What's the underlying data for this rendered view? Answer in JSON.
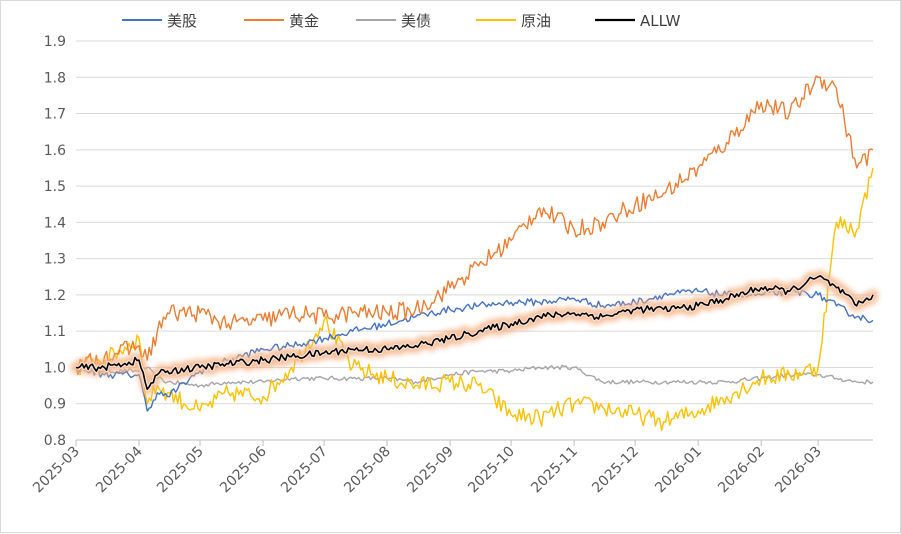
{
  "chart_data": {
    "type": "line",
    "title": "",
    "xlabel": "",
    "ylabel": "",
    "ylim": [
      0.8,
      1.9
    ],
    "yticks": [
      "0.8",
      "0.9",
      "1.0",
      "1.1",
      "1.2",
      "1.3",
      "1.4",
      "1.5",
      "1.6",
      "1.7",
      "1.8",
      "1.9"
    ],
    "x_tick_labels": [
      "2025-03",
      "2025-04",
      "2025-05",
      "2025-06",
      "2025-07",
      "2025-08",
      "2025-09",
      "2025-10",
      "2025-11",
      "2025-12",
      "2026-01",
      "2026-02",
      "2026-03"
    ],
    "grid": "horizontal",
    "legend_position": "top",
    "x": [
      "2025-03-01",
      "2025-03-15",
      "2025-04-01",
      "2025-04-05",
      "2025-04-10",
      "2025-04-15",
      "2025-05-01",
      "2025-05-15",
      "2025-06-01",
      "2025-06-15",
      "2025-07-01",
      "2025-07-15",
      "2025-08-01",
      "2025-08-15",
      "2025-09-01",
      "2025-09-15",
      "2025-10-01",
      "2025-10-15",
      "2025-11-01",
      "2025-11-15",
      "2025-12-01",
      "2025-12-15",
      "2026-01-01",
      "2026-01-15",
      "2026-02-01",
      "2026-02-15",
      "2026-03-01",
      "2026-03-10",
      "2026-03-20",
      "2026-03-28"
    ],
    "series": [
      {
        "name": "美股",
        "color": "#4472C4",
        "values": [
          1.0,
          0.98,
          0.98,
          0.88,
          0.93,
          0.92,
          0.99,
          1.02,
          1.05,
          1.06,
          1.08,
          1.1,
          1.12,
          1.14,
          1.16,
          1.17,
          1.18,
          1.18,
          1.19,
          1.17,
          1.18,
          1.2,
          1.21,
          1.2,
          1.2,
          1.21,
          1.2,
          1.17,
          1.14,
          1.13
        ]
      },
      {
        "name": "黄金",
        "color": "#ED7D31",
        "values": [
          1.0,
          1.03,
          1.06,
          1.02,
          1.1,
          1.15,
          1.15,
          1.12,
          1.13,
          1.15,
          1.14,
          1.15,
          1.15,
          1.16,
          1.22,
          1.28,
          1.35,
          1.44,
          1.38,
          1.4,
          1.45,
          1.48,
          1.55,
          1.62,
          1.73,
          1.7,
          1.8,
          1.77,
          1.55,
          1.6
        ]
      },
      {
        "name": "美债",
        "color": "#A5A5A5",
        "values": [
          1.0,
          0.99,
          0.99,
          1.0,
          0.97,
          0.96,
          0.95,
          0.96,
          0.96,
          0.97,
          0.97,
          0.97,
          0.97,
          0.96,
          0.98,
          0.99,
          0.99,
          1.0,
          1.0,
          0.96,
          0.96,
          0.96,
          0.96,
          0.96,
          0.97,
          0.98,
          0.98,
          0.97,
          0.96,
          0.96
        ]
      },
      {
        "name": "原油",
        "color": "#FFC000",
        "values": [
          1.0,
          1.02,
          1.08,
          0.9,
          0.95,
          0.93,
          0.88,
          0.93,
          0.92,
          1.0,
          1.13,
          1.0,
          0.97,
          0.95,
          0.96,
          0.95,
          0.87,
          0.86,
          0.9,
          0.89,
          0.87,
          0.85,
          0.88,
          0.92,
          0.97,
          0.98,
          1.0,
          1.4,
          1.38,
          1.55
        ]
      },
      {
        "name": "ALLW",
        "color": "#000000",
        "values": [
          1.0,
          1.0,
          1.02,
          0.94,
          0.98,
          0.99,
          1.0,
          1.01,
          1.02,
          1.03,
          1.04,
          1.05,
          1.05,
          1.06,
          1.08,
          1.1,
          1.12,
          1.14,
          1.15,
          1.14,
          1.16,
          1.16,
          1.17,
          1.19,
          1.22,
          1.21,
          1.25,
          1.22,
          1.17,
          1.2
        ]
      }
    ],
    "highlight_series": "ALLW",
    "highlight_color": "#F4B183"
  }
}
